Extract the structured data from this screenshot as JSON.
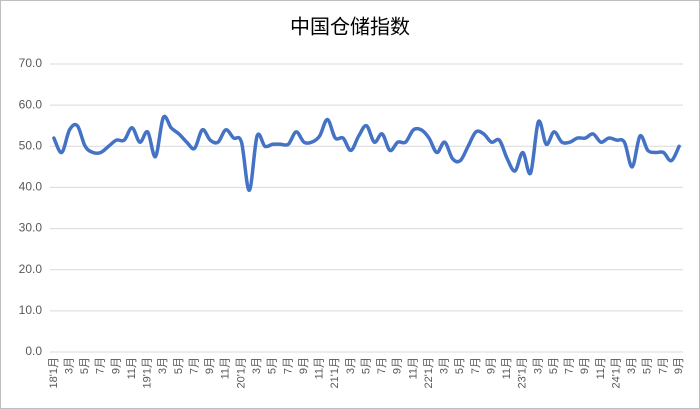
{
  "chart_data": {
    "type": "line",
    "title": "中国仓储指数",
    "categories": [
      "18'1月",
      null,
      "3月",
      null,
      "5月",
      null,
      "7月",
      null,
      "9月",
      null,
      "11月",
      null,
      "19'1月",
      null,
      "3月",
      null,
      "5月",
      null,
      "7月",
      null,
      "9月",
      null,
      "11月",
      null,
      "20'1月",
      null,
      "3月",
      null,
      "5月",
      null,
      "7月",
      null,
      "9月",
      null,
      "11月",
      null,
      "21'1月",
      null,
      "3月",
      null,
      "5月",
      null,
      "7月",
      null,
      "9月",
      null,
      "11月",
      null,
      "22'1月",
      null,
      "3月",
      null,
      "5月",
      null,
      "7月",
      null,
      "9月",
      null,
      "11月",
      null,
      "23'1月",
      null,
      "3月",
      null,
      "5月",
      null,
      "7月",
      null,
      "9月",
      null,
      "11月",
      null,
      "24'1月",
      null,
      "3月",
      null,
      "5月",
      null,
      "7月",
      null,
      "9月"
    ],
    "values": [
      52,
      48.5,
      54,
      55,
      50,
      48.5,
      48.5,
      50,
      51.5,
      51.5,
      54.5,
      51,
      53.5,
      47.5,
      57,
      54.5,
      53,
      51,
      49.5,
      54,
      51.5,
      51,
      54,
      52,
      51,
      39.3,
      52.5,
      50,
      50.5,
      50.5,
      50.5,
      53.5,
      51,
      51,
      52.5,
      56.5,
      52,
      52,
      49,
      52.5,
      55,
      51,
      53,
      49,
      51,
      51,
      54,
      54,
      52,
      48.5,
      51,
      47,
      46.5,
      50,
      53.5,
      53,
      51,
      51.5,
      47,
      44,
      48.5,
      43.5,
      56,
      50.5,
      53.5,
      51,
      51,
      52,
      52,
      53,
      51,
      52,
      51.5,
      51,
      45,
      52.5,
      49,
      48.5,
      48.5,
      46.5,
      50
    ],
    "color": "#4472c4",
    "ylim": [
      0,
      70
    ],
    "yticks": [
      {
        "value": 0,
        "label": "0.0"
      },
      {
        "value": 10,
        "label": "10.0"
      },
      {
        "value": 20,
        "label": "20.0"
      },
      {
        "value": 30,
        "label": "30.0"
      },
      {
        "value": 40,
        "label": "40.0"
      },
      {
        "value": 50,
        "label": "50.0"
      },
      {
        "value": 60,
        "label": "60.0"
      },
      {
        "value": 70,
        "label": "70.0"
      }
    ],
    "grid": true
  }
}
